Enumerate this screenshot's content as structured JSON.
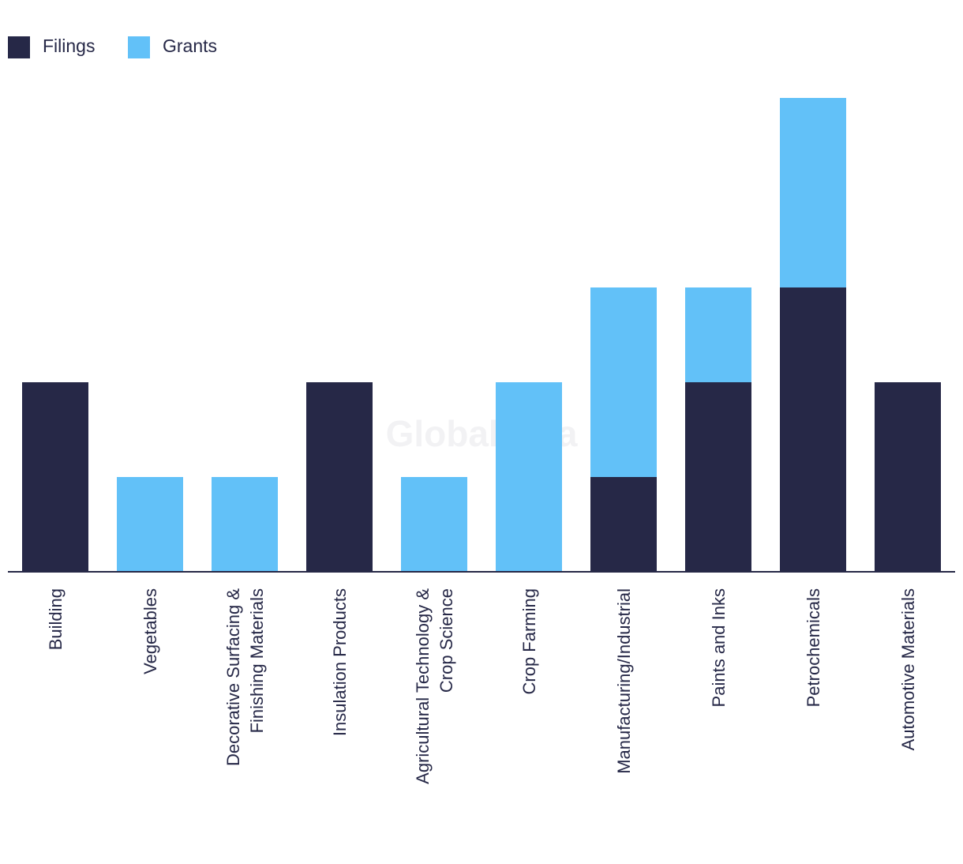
{
  "chart_data": {
    "type": "bar",
    "stacked": true,
    "title": "",
    "xlabel": "",
    "ylabel": "",
    "ylim": [
      0,
      5
    ],
    "grid": false,
    "legend_position": "top-left",
    "categories": [
      "Building",
      "Vegetables",
      "Decorative Surfacing & Finishing Materials",
      "Insulation Products",
      "Agricultural Technology & Crop Science",
      "Crop Farming",
      "Manufacturing/Industrial",
      "Paints and Inks",
      "Petrochemicals",
      "Automotive Materials"
    ],
    "category_label_lines": [
      [
        "Building"
      ],
      [
        "Vegetables"
      ],
      [
        "Decorative Surfacing &",
        "Finishing Materials"
      ],
      [
        "Insulation Products"
      ],
      [
        "Agricultural Technology &",
        "Crop Science"
      ],
      [
        "Crop Farming"
      ],
      [
        "Manufacturing/Industrial"
      ],
      [
        "Paints and Inks"
      ],
      [
        "Petrochemicals"
      ],
      [
        "Automotive Materials"
      ]
    ],
    "series": [
      {
        "name": "Filings",
        "color": "#262847",
        "values": [
          2,
          0,
          0,
          2,
          0,
          0,
          1,
          2,
          3,
          2
        ]
      },
      {
        "name": "Grants",
        "color": "#62c1f8",
        "values": [
          0,
          1,
          1,
          0,
          1,
          2,
          2,
          1,
          2,
          0
        ]
      }
    ],
    "watermark": "GlobalData"
  },
  "colors": {
    "axis": "#262847",
    "text": "#262847",
    "background": "#ffffff"
  }
}
